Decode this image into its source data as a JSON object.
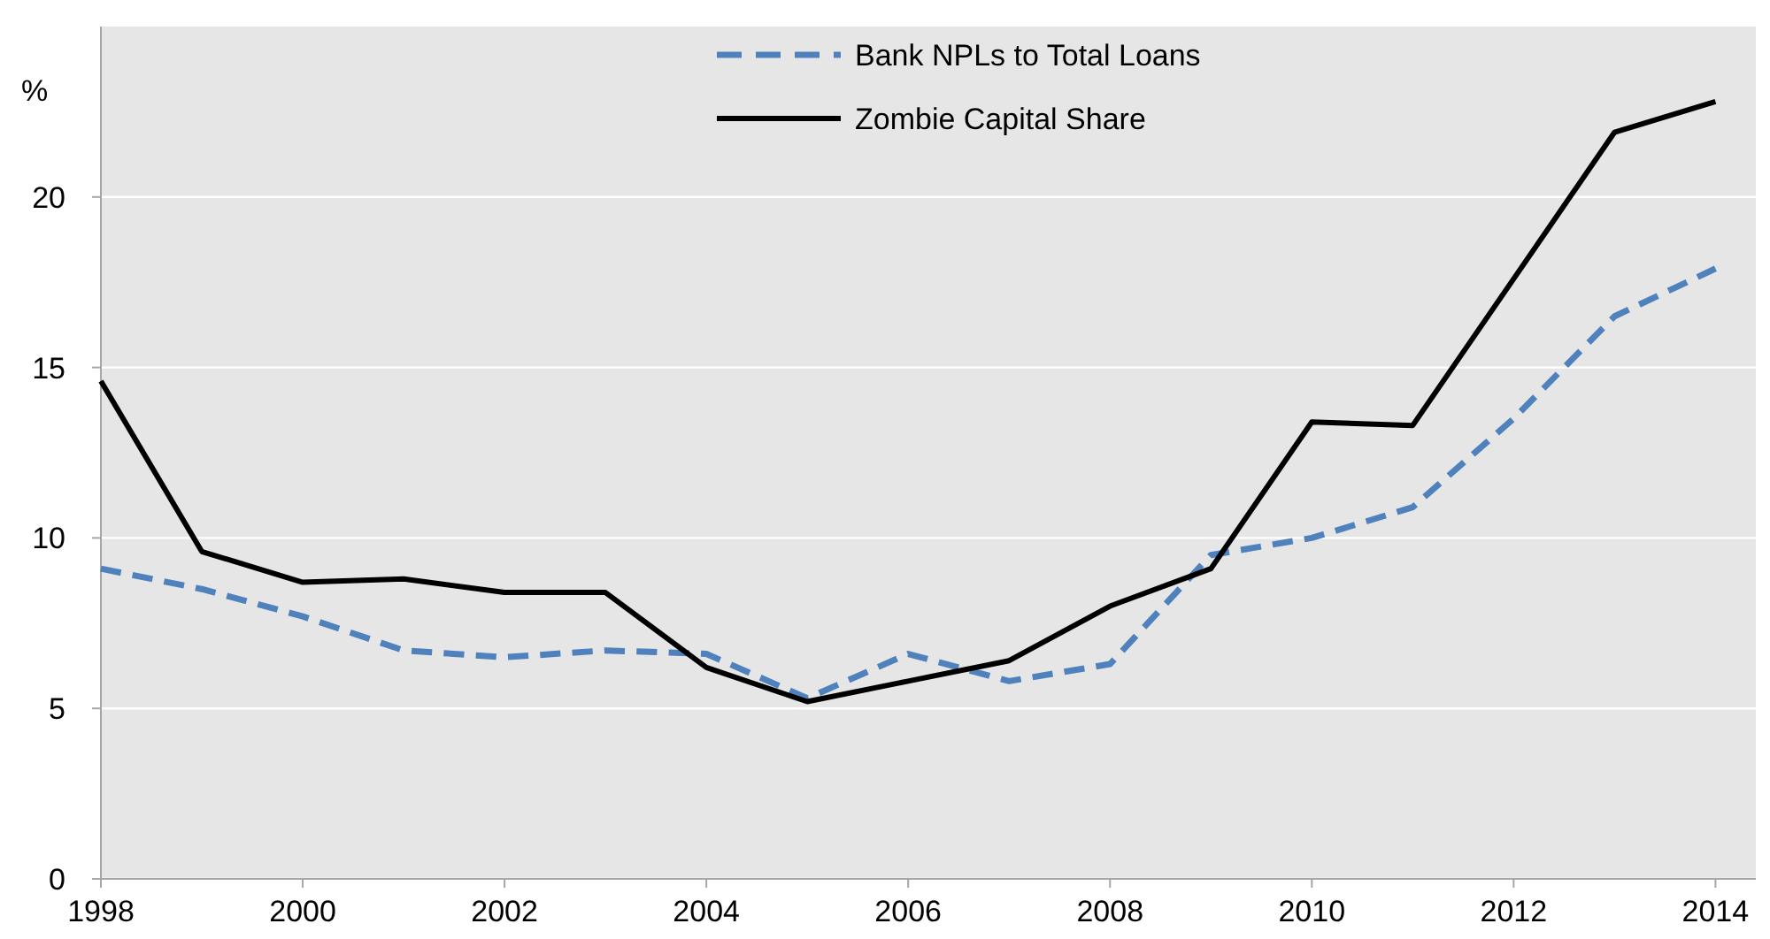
{
  "chart_data": {
    "type": "line",
    "ylabel": "%",
    "x": [
      1998,
      1999,
      2000,
      2001,
      2002,
      2003,
      2004,
      2005,
      2006,
      2007,
      2008,
      2009,
      2010,
      2011,
      2012,
      2013,
      2014
    ],
    "series": [
      {
        "name": "Bank NPLs to Total Loans",
        "color": "#4f81bd",
        "line_style": "dashed",
        "values": [
          9.1,
          8.5,
          7.7,
          6.7,
          6.5,
          6.7,
          6.6,
          5.3,
          6.6,
          5.8,
          6.3,
          9.5,
          10.0,
          10.9,
          13.5,
          16.5,
          17.9
        ]
      },
      {
        "name": "Zombie Capital Share",
        "color": "#000000",
        "line_style": "solid",
        "values": [
          14.6,
          9.6,
          8.7,
          8.8,
          8.4,
          8.4,
          6.2,
          5.2,
          5.8,
          6.4,
          8.0,
          9.1,
          13.4,
          13.3,
          17.6,
          21.9,
          22.8
        ]
      }
    ],
    "xlim": [
      1998,
      2014.4
    ],
    "xticks": [
      1998,
      2000,
      2002,
      2004,
      2006,
      2008,
      2010,
      2012,
      2014
    ],
    "ylim": [
      0,
      25
    ],
    "yticks": [
      0,
      5,
      10,
      15,
      20
    ],
    "grid": "y",
    "legend": "top",
    "marker": "none"
  }
}
